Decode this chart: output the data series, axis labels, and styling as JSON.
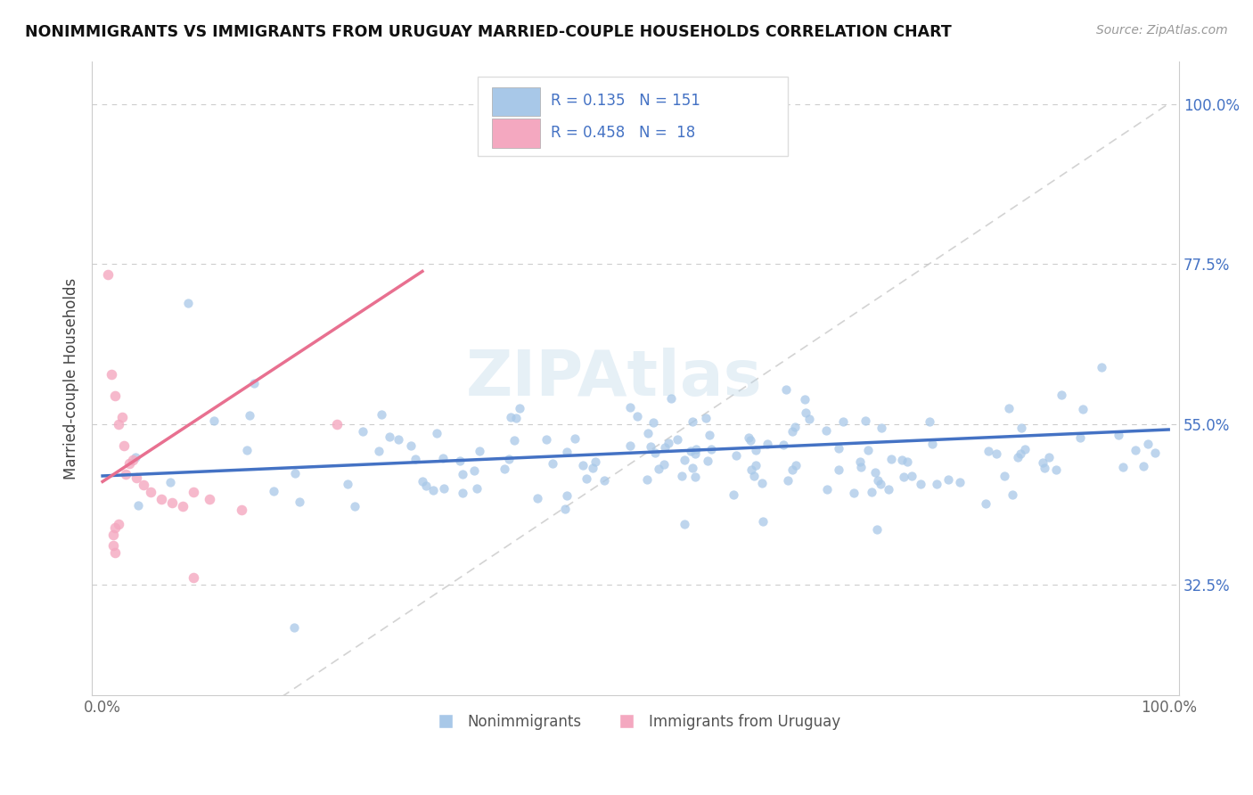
{
  "title": "NONIMMIGRANTS VS IMMIGRANTS FROM URUGUAY MARRIED-COUPLE HOUSEHOLDS CORRELATION CHART",
  "source": "Source: ZipAtlas.com",
  "ylabel": "Married-couple Households",
  "blue_R": 0.135,
  "blue_N": 151,
  "pink_R": 0.458,
  "pink_N": 18,
  "blue_color": "#A8C8E8",
  "pink_color": "#F4A8C0",
  "blue_line_color": "#4472C4",
  "pink_line_color": "#E87090",
  "diag_line_color": "#C8C8C8",
  "ytick_labels": [
    "32.5%",
    "55.0%",
    "77.5%",
    "100.0%"
  ],
  "ytick_vals": [
    0.325,
    0.55,
    0.775,
    1.0
  ],
  "ylim_min": 0.17,
  "ylim_max": 1.06,
  "xlim_min": -0.01,
  "xlim_max": 1.01,
  "blue_line_x0": 0.0,
  "blue_line_x1": 1.0,
  "blue_line_y0": 0.478,
  "blue_line_y1": 0.543,
  "pink_line_x0": 0.0,
  "pink_line_x1": 0.3,
  "pink_line_y0": 0.47,
  "pink_line_y1": 0.765,
  "watermark_text": "ZIPAtlas",
  "watermark_fontsize": 52
}
